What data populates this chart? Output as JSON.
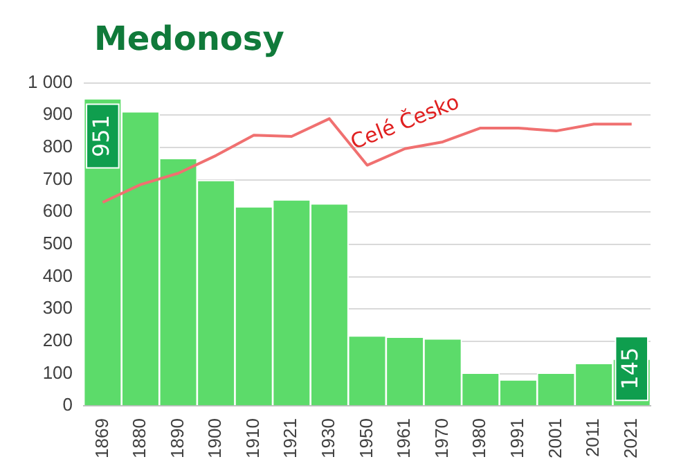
{
  "chart_data": {
    "type": "bar",
    "title": "Medonosy",
    "categories": [
      "1869",
      "1880",
      "1890",
      "1900",
      "1910",
      "1921",
      "1930",
      "1950",
      "1961",
      "1970",
      "1980",
      "1991",
      "2001",
      "2011",
      "2021"
    ],
    "series": [
      {
        "color": "#5cdb6a",
        "values": [
          951,
          911,
          766,
          698,
          617,
          638,
          626,
          217,
          213,
          208,
          102,
          81,
          102,
          132,
          145
        ],
        "value_labels": [
          "951",
          null,
          null,
          null,
          null,
          null,
          null,
          null,
          null,
          null,
          null,
          null,
          null,
          null,
          "145"
        ]
      },
      {
        "type": "line",
        "name": "Celé Česko",
        "color": "#f07070",
        "values": [
          630,
          685,
          720,
          775,
          838,
          834,
          889,
          745,
          796,
          817,
          860,
          860,
          851,
          872,
          872
        ]
      }
    ],
    "ylim": [
      0,
      1000
    ],
    "yticks": [
      0,
      100,
      200,
      300,
      400,
      500,
      600,
      700,
      800,
      900,
      {
        "value": 1000,
        "label": "1 000"
      }
    ],
    "grid": "y"
  }
}
